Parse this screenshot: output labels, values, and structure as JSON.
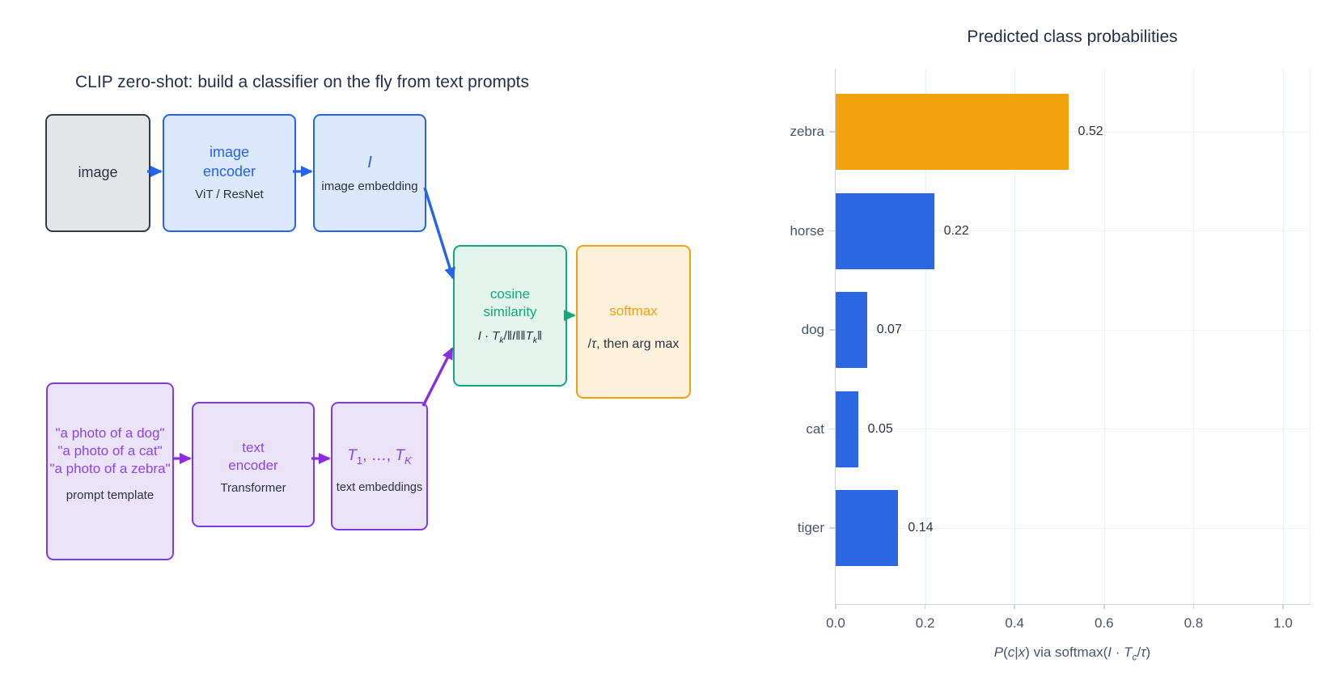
{
  "diagram": {
    "title": "CLIP zero-shot: build a classifier on the fly from text prompts",
    "image_box": {
      "label": "image"
    },
    "image_encoder": {
      "line1": "image",
      "line2": "encoder",
      "sub": "ViT / ResNet"
    },
    "image_embedding": {
      "symbol_parts": [
        {
          "t": "I",
          "s": "i"
        }
      ],
      "sub": "image embedding"
    },
    "cosine": {
      "line1": "cosine",
      "line2": "similarity",
      "formula_parts": [
        {
          "t": "I",
          "s": "i"
        },
        {
          "t": " · ",
          "s": ""
        },
        {
          "t": "T",
          "s": "i"
        },
        {
          "t": "k",
          "s": "isub"
        },
        {
          "t": "/‖",
          "s": ""
        },
        {
          "t": "I",
          "s": "i"
        },
        {
          "t": "‖‖",
          "s": ""
        },
        {
          "t": "T",
          "s": "i"
        },
        {
          "t": "k",
          "s": "isub"
        },
        {
          "t": "‖",
          "s": ""
        }
      ]
    },
    "softmax": {
      "label": "softmax",
      "sub_parts": [
        {
          "t": "/",
          "s": ""
        },
        {
          "t": "τ",
          "s": "i"
        },
        {
          "t": ", then arg max",
          "s": ""
        }
      ]
    },
    "prompts": {
      "lines": [
        "\"a photo of a dog\"",
        "\"a photo of a cat\"",
        "\"a photo of a zebra\""
      ],
      "sub": "prompt template"
    },
    "text_encoder": {
      "line1": "text",
      "line2": "encoder",
      "sub": "Transformer"
    },
    "text_embeddings": {
      "symbol_parts": [
        {
          "t": "T",
          "s": "i"
        },
        {
          "t": "1",
          "s": "sub"
        },
        {
          "t": ", …, ",
          "s": ""
        },
        {
          "t": "T",
          "s": "i"
        },
        {
          "t": "K",
          "s": "isub"
        }
      ],
      "sub": "text embeddings"
    },
    "colors": {
      "blue": "#2563eb",
      "purple": "#7c3aed",
      "green": "#16a77c",
      "orange": "#f2a20c"
    }
  },
  "chart_data": {
    "type": "bar",
    "orientation": "horizontal",
    "title": "Predicted class probabilities",
    "categories": [
      "zebra",
      "horse",
      "dog",
      "cat",
      "tiger"
    ],
    "values": [
      0.52,
      0.22,
      0.07,
      0.05,
      0.14
    ],
    "value_labels": [
      "0.52",
      "0.22",
      "0.07",
      "0.05",
      "0.14"
    ],
    "bar_colors": [
      "#f2a20c",
      "#2b66e3",
      "#2b66e3",
      "#2b66e3",
      "#2b66e3"
    ],
    "highlight_color": "#f2a20c",
    "base_bar_color": "#2b66e3",
    "x_ticks": [
      "0.0",
      "0.2",
      "0.4",
      "0.6",
      "0.8",
      "1.0"
    ],
    "x_tick_values": [
      0.0,
      0.2,
      0.4,
      0.6,
      0.8,
      1.0
    ],
    "xlim": [
      0.0,
      1.06
    ],
    "grid": true,
    "legend": false,
    "xlabel_parts": [
      {
        "t": "P",
        "s": "i"
      },
      {
        "t": "(",
        "s": ""
      },
      {
        "t": "c",
        "s": "i"
      },
      {
        "t": "|",
        "s": ""
      },
      {
        "t": "x",
        "s": "i"
      },
      {
        "t": ") via softmax(",
        "s": ""
      },
      {
        "t": "I",
        "s": "i"
      },
      {
        "t": " · ",
        "s": ""
      },
      {
        "t": "T",
        "s": "i"
      },
      {
        "t": "c",
        "s": "isub"
      },
      {
        "t": "/",
        "s": ""
      },
      {
        "t": "τ",
        "s": "i"
      },
      {
        "t": ")",
        "s": ""
      }
    ]
  }
}
